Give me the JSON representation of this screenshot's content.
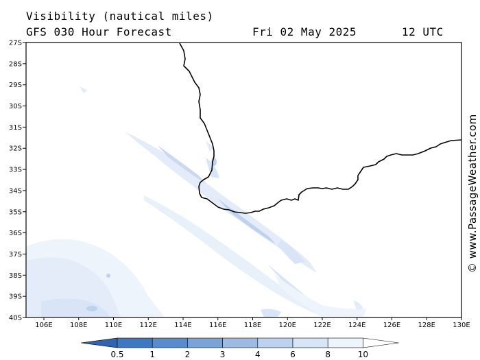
{
  "header": {
    "title": "Visibility (nautical miles)",
    "subtitle": "GFS 030 Hour Forecast",
    "date": "Fri 02 May 2025",
    "time": "12 UTC"
  },
  "credit": "© www.PassageWeather.com",
  "map": {
    "lat_labels": [
      "27S",
      "28S",
      "29S",
      "30S",
      "31S",
      "32S",
      "33S",
      "34S",
      "35S",
      "36S",
      "37S",
      "38S",
      "39S",
      "40S"
    ],
    "lon_labels": [
      "106E",
      "108E",
      "110E",
      "112E",
      "114E",
      "116E",
      "118E",
      "120E",
      "122E",
      "124E",
      "126E",
      "128E",
      "130E"
    ]
  },
  "colorbar": {
    "labels": [
      "0.5",
      "1",
      "2",
      "3",
      "4",
      "6",
      "8",
      "10"
    ],
    "colors": [
      "#3d78c0",
      "#5a8ccd",
      "#7aa3d8",
      "#9cbbe3",
      "#bcd2ee",
      "#d7e5f6",
      "#eef4fb"
    ]
  }
}
